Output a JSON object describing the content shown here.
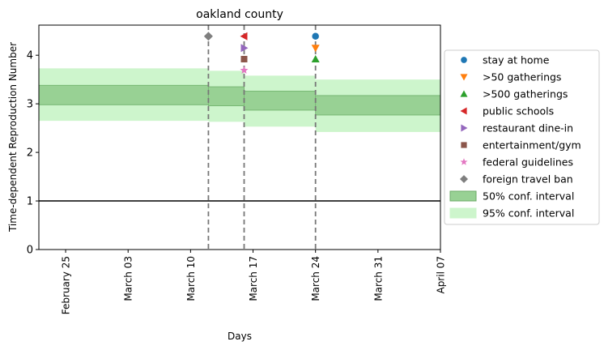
{
  "chart_data": {
    "type": "line",
    "title": "oakland county",
    "xlabel": "Days",
    "ylabel": "Time-dependent Reproduction Number",
    "x_range": [
      "2020-02-22",
      "2020-04-07"
    ],
    "ylim": [
      0,
      4.62
    ],
    "grid": false,
    "legend_position": "right",
    "x_ticks": [
      {
        "date": "2020-02-25",
        "label": "February 25"
      },
      {
        "date": "2020-03-03",
        "label": "March 03"
      },
      {
        "date": "2020-03-10",
        "label": "March 10"
      },
      {
        "date": "2020-03-17",
        "label": "March 17"
      },
      {
        "date": "2020-03-24",
        "label": "March 24"
      },
      {
        "date": "2020-03-31",
        "label": "March 31"
      },
      {
        "date": "2020-04-07",
        "label": "April 07"
      }
    ],
    "y_ticks": [
      0,
      1,
      2,
      3,
      4
    ],
    "reference_line": {
      "y": 1,
      "color": "#000000"
    },
    "intervention_dates": [
      "2020-03-12",
      "2020-03-16",
      "2020-03-24"
    ],
    "interventions": [
      {
        "name": "stay at home",
        "date": "2020-03-24",
        "y": 4.39,
        "marker": "circle",
        "color": "#1f77b4"
      },
      {
        "name": ">50 gatherings",
        "date": "2020-03-24",
        "y": 4.15,
        "marker": "triangle-down",
        "color": "#ff7f0e"
      },
      {
        "name": ">500 gatherings",
        "date": "2020-03-24",
        "y": 3.92,
        "marker": "triangle-up",
        "color": "#2ca02c"
      },
      {
        "name": "public schools",
        "date": "2020-03-16",
        "y": 4.39,
        "marker": "triangle-left",
        "color": "#d62728"
      },
      {
        "name": "restaurant dine-in",
        "date": "2020-03-16",
        "y": 4.15,
        "marker": "triangle-right",
        "color": "#9467bd"
      },
      {
        "name": "entertainment/gym",
        "date": "2020-03-16",
        "y": 3.92,
        "marker": "square",
        "color": "#8c564b"
      },
      {
        "name": "federal guidelines",
        "date": "2020-03-16",
        "y": 3.69,
        "marker": "star",
        "color": "#e377c2"
      },
      {
        "name": "foreign travel ban",
        "date": "2020-03-12",
        "y": 4.39,
        "marker": "diamond",
        "color": "#7f7f7f"
      }
    ],
    "ci_segments": [
      {
        "start": "2020-02-22",
        "end": "2020-03-12",
        "ci50": [
          2.98,
          3.38
        ],
        "ci95": [
          2.65,
          3.73
        ]
      },
      {
        "start": "2020-03-12",
        "end": "2020-03-16",
        "ci50": [
          2.96,
          3.35
        ],
        "ci95": [
          2.63,
          3.68
        ]
      },
      {
        "start": "2020-03-16",
        "end": "2020-03-24",
        "ci50": [
          2.87,
          3.26
        ],
        "ci95": [
          2.53,
          3.58
        ]
      },
      {
        "start": "2020-03-24",
        "end": "2020-04-07",
        "ci50": [
          2.77,
          3.17
        ],
        "ci95": [
          2.42,
          3.5
        ]
      }
    ],
    "legend_patches": [
      {
        "name": "50% conf. interval",
        "fill": "#98d194",
        "stroke": "#6cab67"
      },
      {
        "name": "95% conf. interval",
        "fill": "#cdf5cc",
        "stroke": "#cdf5cc"
      }
    ],
    "colors": {
      "ci50": "#98d194",
      "ci50_edge": "#78b874",
      "ci95": "#cdf5cc",
      "vline": "#777777"
    }
  }
}
